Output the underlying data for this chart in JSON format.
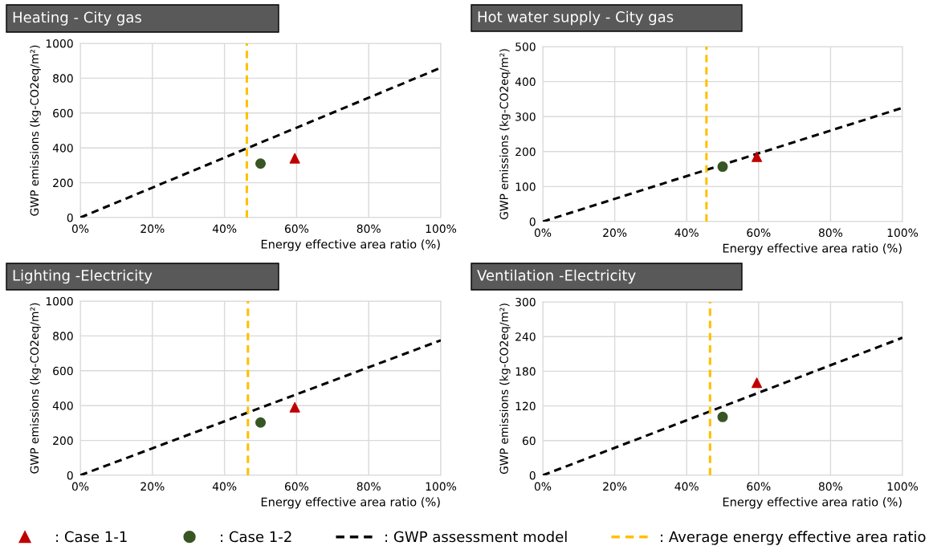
{
  "chart_data": [
    {
      "type": "scatter",
      "title": "Heating - City gas",
      "xlabel": "Energy effective area ratio (%)",
      "ylabel": "GWP emissions (kg-CO2eq/m²)",
      "xlim": [
        0,
        100
      ],
      "ylim": [
        0,
        1000
      ],
      "xticks": [
        {
          "value": 0,
          "label": "0%"
        },
        {
          "value": 20,
          "label": "20%"
        },
        {
          "value": 40,
          "label": "40%"
        },
        {
          "value": 60,
          "label": "60%"
        },
        {
          "value": 80,
          "label": "80%"
        },
        {
          "value": 100,
          "label": "100%"
        }
      ],
      "yticks": [
        0,
        200,
        400,
        600,
        800,
        1000
      ],
      "grid": true,
      "legend": "bottom",
      "series": [
        {
          "name": ": Case 1-1",
          "marker": "triangle",
          "color": "#c00000",
          "x": [
            59.5
          ],
          "values": [
            340
          ]
        },
        {
          "name": ": Case 1-2",
          "marker": "circle",
          "color": "#375623",
          "x": [
            50
          ],
          "values": [
            310
          ]
        },
        {
          "name": ": GWP assessment model",
          "type": "line",
          "line_style": "dashed",
          "color": "#000000",
          "x": [
            0,
            100
          ],
          "values": [
            0,
            860
          ]
        }
      ],
      "ref_lines": [
        {
          "axis": "x",
          "value": 46.2,
          "label": ": Average energy effective area ratio",
          "color": "#ffc000",
          "line_style": "dashed"
        }
      ]
    },
    {
      "type": "scatter",
      "title": "Hot water supply - City gas",
      "xlabel": "Energy effective area ratio (%)",
      "ylabel": "GWP emissions (kg-CO2eq/m²)",
      "xlim": [
        0,
        100
      ],
      "ylim": [
        0,
        500
      ],
      "xticks": [
        {
          "value": 0,
          "label": "0%"
        },
        {
          "value": 20,
          "label": "20%"
        },
        {
          "value": 40,
          "label": "40%"
        },
        {
          "value": 60,
          "label": "60%"
        },
        {
          "value": 80,
          "label": "80%"
        },
        {
          "value": 100,
          "label": "100%"
        }
      ],
      "yticks": [
        0,
        100,
        200,
        300,
        400,
        500
      ],
      "grid": true,
      "series": [
        {
          "marker": "triangle",
          "color": "#c00000",
          "x": [
            59.5
          ],
          "values": [
            185
          ]
        },
        {
          "marker": "circle",
          "color": "#375623",
          "x": [
            50
          ],
          "values": [
            157
          ]
        },
        {
          "type": "line",
          "line_style": "dashed",
          "color": "#000000",
          "x": [
            0,
            100
          ],
          "values": [
            0,
            325
          ]
        }
      ],
      "ref_lines": [
        {
          "axis": "x",
          "value": 45.5,
          "color": "#ffc000",
          "line_style": "dashed"
        }
      ]
    },
    {
      "type": "scatter",
      "title": "Lighting -Electricity",
      "xlabel": "Energy effective area ratio (%)",
      "ylabel": "GWP emissions (kg-CO2eq/m²)",
      "xlim": [
        0,
        100
      ],
      "ylim": [
        0,
        1000
      ],
      "xticks": [
        {
          "value": 0,
          "label": "0%"
        },
        {
          "value": 20,
          "label": "20%"
        },
        {
          "value": 40,
          "label": "40%"
        },
        {
          "value": 60,
          "label": "60%"
        },
        {
          "value": 80,
          "label": "80%"
        },
        {
          "value": 100,
          "label": "100%"
        }
      ],
      "yticks": [
        0,
        200,
        400,
        600,
        800,
        1000
      ],
      "grid": true,
      "series": [
        {
          "marker": "triangle",
          "color": "#c00000",
          "x": [
            59.5
          ],
          "values": [
            390
          ]
        },
        {
          "marker": "circle",
          "color": "#375623",
          "x": [
            50
          ],
          "values": [
            303
          ]
        },
        {
          "type": "line",
          "line_style": "dashed",
          "color": "#000000",
          "x": [
            0,
            100
          ],
          "values": [
            0,
            775
          ]
        }
      ],
      "ref_lines": [
        {
          "axis": "x",
          "value": 46.5,
          "color": "#ffc000",
          "line_style": "dashed"
        }
      ]
    },
    {
      "type": "scatter",
      "title": "Ventilation -Electricity",
      "xlabel": "Energy effective area ratio (%)",
      "ylabel": "GWP emissions (kg-CO2eq/m²)",
      "xlim": [
        0,
        100
      ],
      "ylim": [
        0,
        300
      ],
      "xticks": [
        {
          "value": 0,
          "label": "0%"
        },
        {
          "value": 20,
          "label": "20%"
        },
        {
          "value": 40,
          "label": "40%"
        },
        {
          "value": 60,
          "label": "60%"
        },
        {
          "value": 80,
          "label": "80%"
        },
        {
          "value": 100,
          "label": "100%"
        }
      ],
      "yticks": [
        0,
        60,
        120,
        180,
        240,
        300
      ],
      "grid": true,
      "series": [
        {
          "marker": "triangle",
          "color": "#c00000",
          "x": [
            59.5
          ],
          "values": [
            160
          ]
        },
        {
          "marker": "circle",
          "color": "#375623",
          "x": [
            50
          ],
          "values": [
            101
          ]
        },
        {
          "type": "line",
          "line_style": "dashed",
          "color": "#000000",
          "x": [
            0,
            100
          ],
          "values": [
            0,
            238
          ]
        }
      ],
      "ref_lines": [
        {
          "axis": "x",
          "value": 46.5,
          "color": "#ffc000",
          "line_style": "dashed"
        }
      ]
    }
  ]
}
